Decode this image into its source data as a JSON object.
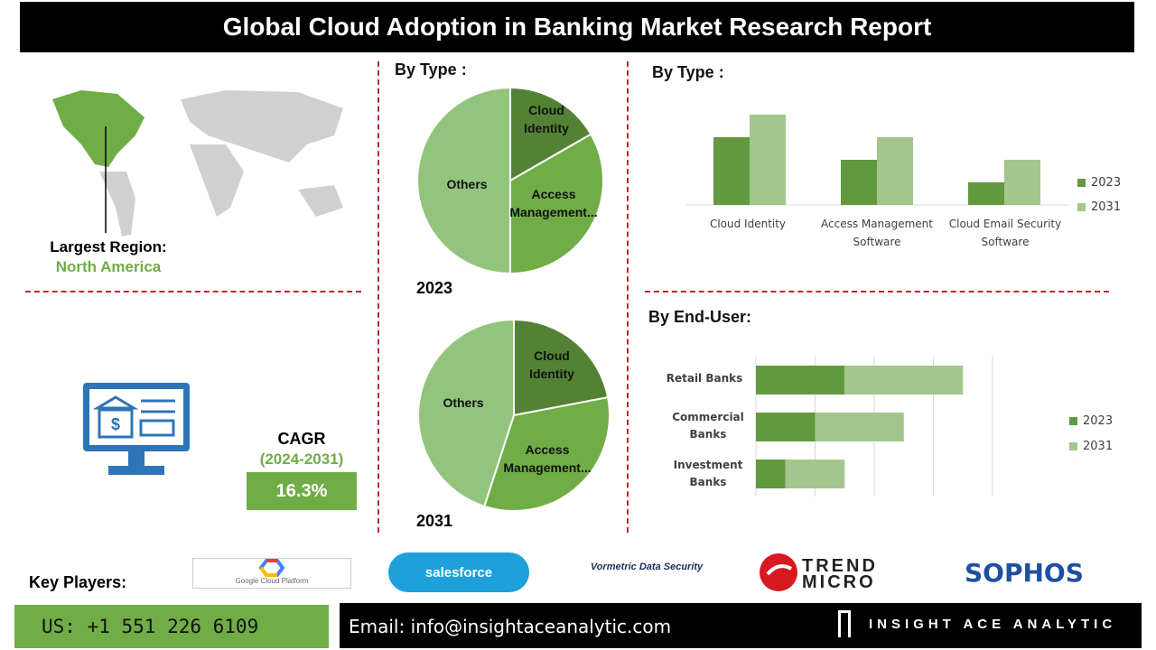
{
  "title": "Global Cloud Adoption in Banking Market  Research Report",
  "region": {
    "label": "Largest Region:",
    "value": "North America"
  },
  "cagr": {
    "label": "CAGR",
    "period": "(2024-2031)",
    "value": "16.3%"
  },
  "sections": {
    "pie_heading": "By Type :",
    "column_heading": "By  Type :",
    "bar_heading": "By End-User:"
  },
  "colors": {
    "dark_green": "#62993e",
    "light_green": "#a3c68c",
    "pie_mid": "#70ad47",
    "pie_dark": "#548235",
    "pie_light": "#93c47d",
    "accent_red": "#c0272d",
    "title_bg": "#000000"
  },
  "key_players": {
    "label": "Key Players:",
    "logos": [
      "Google Cloud Platform",
      "salesforce",
      "Vormetric Data Security",
      "TREND MICRO",
      "SOPHOS"
    ]
  },
  "footer": {
    "phone": "US: +1 551 226 6109",
    "email": "Email: info@insightaceanalytic.com",
    "brand": "INSIGHT ACE ANALYTIC"
  },
  "chart_data": [
    {
      "type": "pie",
      "title": "2023",
      "labels": [
        "Cloud Identity",
        "Access Management...",
        "Others"
      ],
      "values": [
        16.7,
        33.3,
        50
      ]
    },
    {
      "type": "pie",
      "title": "2031",
      "labels": [
        "Cloud Identity",
        "Access Management...",
        "Others"
      ],
      "values": [
        22,
        33,
        45
      ]
    },
    {
      "type": "bar",
      "categories": [
        "Cloud Identity",
        "Access Management Software",
        "Cloud Email Security Software"
      ],
      "series": [
        {
          "name": "2023",
          "values": [
            3,
            2,
            1
          ]
        },
        {
          "name": "2031",
          "values": [
            4,
            3,
            2
          ]
        }
      ],
      "ylim": [
        0,
        4
      ],
      "legend": "right",
      "grid": false
    },
    {
      "type": "bar",
      "orientation": "horizontal",
      "stacked": true,
      "categories": [
        "Retail Banks",
        "Commercial Banks",
        "Investment Banks"
      ],
      "series": [
        {
          "name": "2023",
          "values": [
            1.5,
            1,
            0.5
          ]
        },
        {
          "name": "2031",
          "values": [
            2,
            1.5,
            1
          ]
        }
      ],
      "xlim": [
        0,
        4
      ],
      "legend": "right",
      "grid": true
    }
  ]
}
